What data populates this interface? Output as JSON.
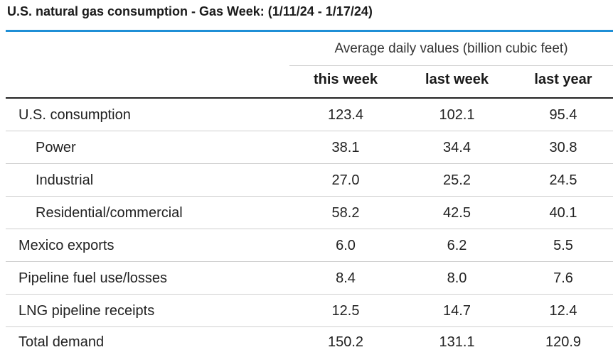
{
  "title": "U.S. natural gas consumption - Gas Week: (1/11/24 - 1/17/24)",
  "units_label": "Average daily values (billion cubic feet)",
  "columns": [
    "this week",
    "last week",
    "last year"
  ],
  "rows": [
    {
      "label": "U.S. consumption",
      "values": [
        "123.4",
        "102.1",
        "95.4"
      ]
    },
    {
      "label": "Power",
      "values": [
        "38.1",
        "34.4",
        "30.8"
      ]
    },
    {
      "label": "Industrial",
      "values": [
        "27.0",
        "25.2",
        "24.5"
      ]
    },
    {
      "label": "Residential/commercial",
      "values": [
        "58.2",
        "42.5",
        "40.1"
      ]
    },
    {
      "label": "Mexico exports",
      "values": [
        "6.0",
        "6.2",
        "5.5"
      ]
    },
    {
      "label": "Pipeline fuel use/losses",
      "values": [
        "8.4",
        "8.0",
        "7.6"
      ]
    },
    {
      "label": "LNG pipeline receipts",
      "values": [
        "12.5",
        "14.7",
        "12.4"
      ]
    },
    {
      "label": "Total demand",
      "values": [
        "150.2",
        "131.1",
        "120.9"
      ]
    }
  ],
  "colors": {
    "accent_rule": "#1f8fd6",
    "text": "#222222",
    "divider": "#cfcfcf"
  }
}
